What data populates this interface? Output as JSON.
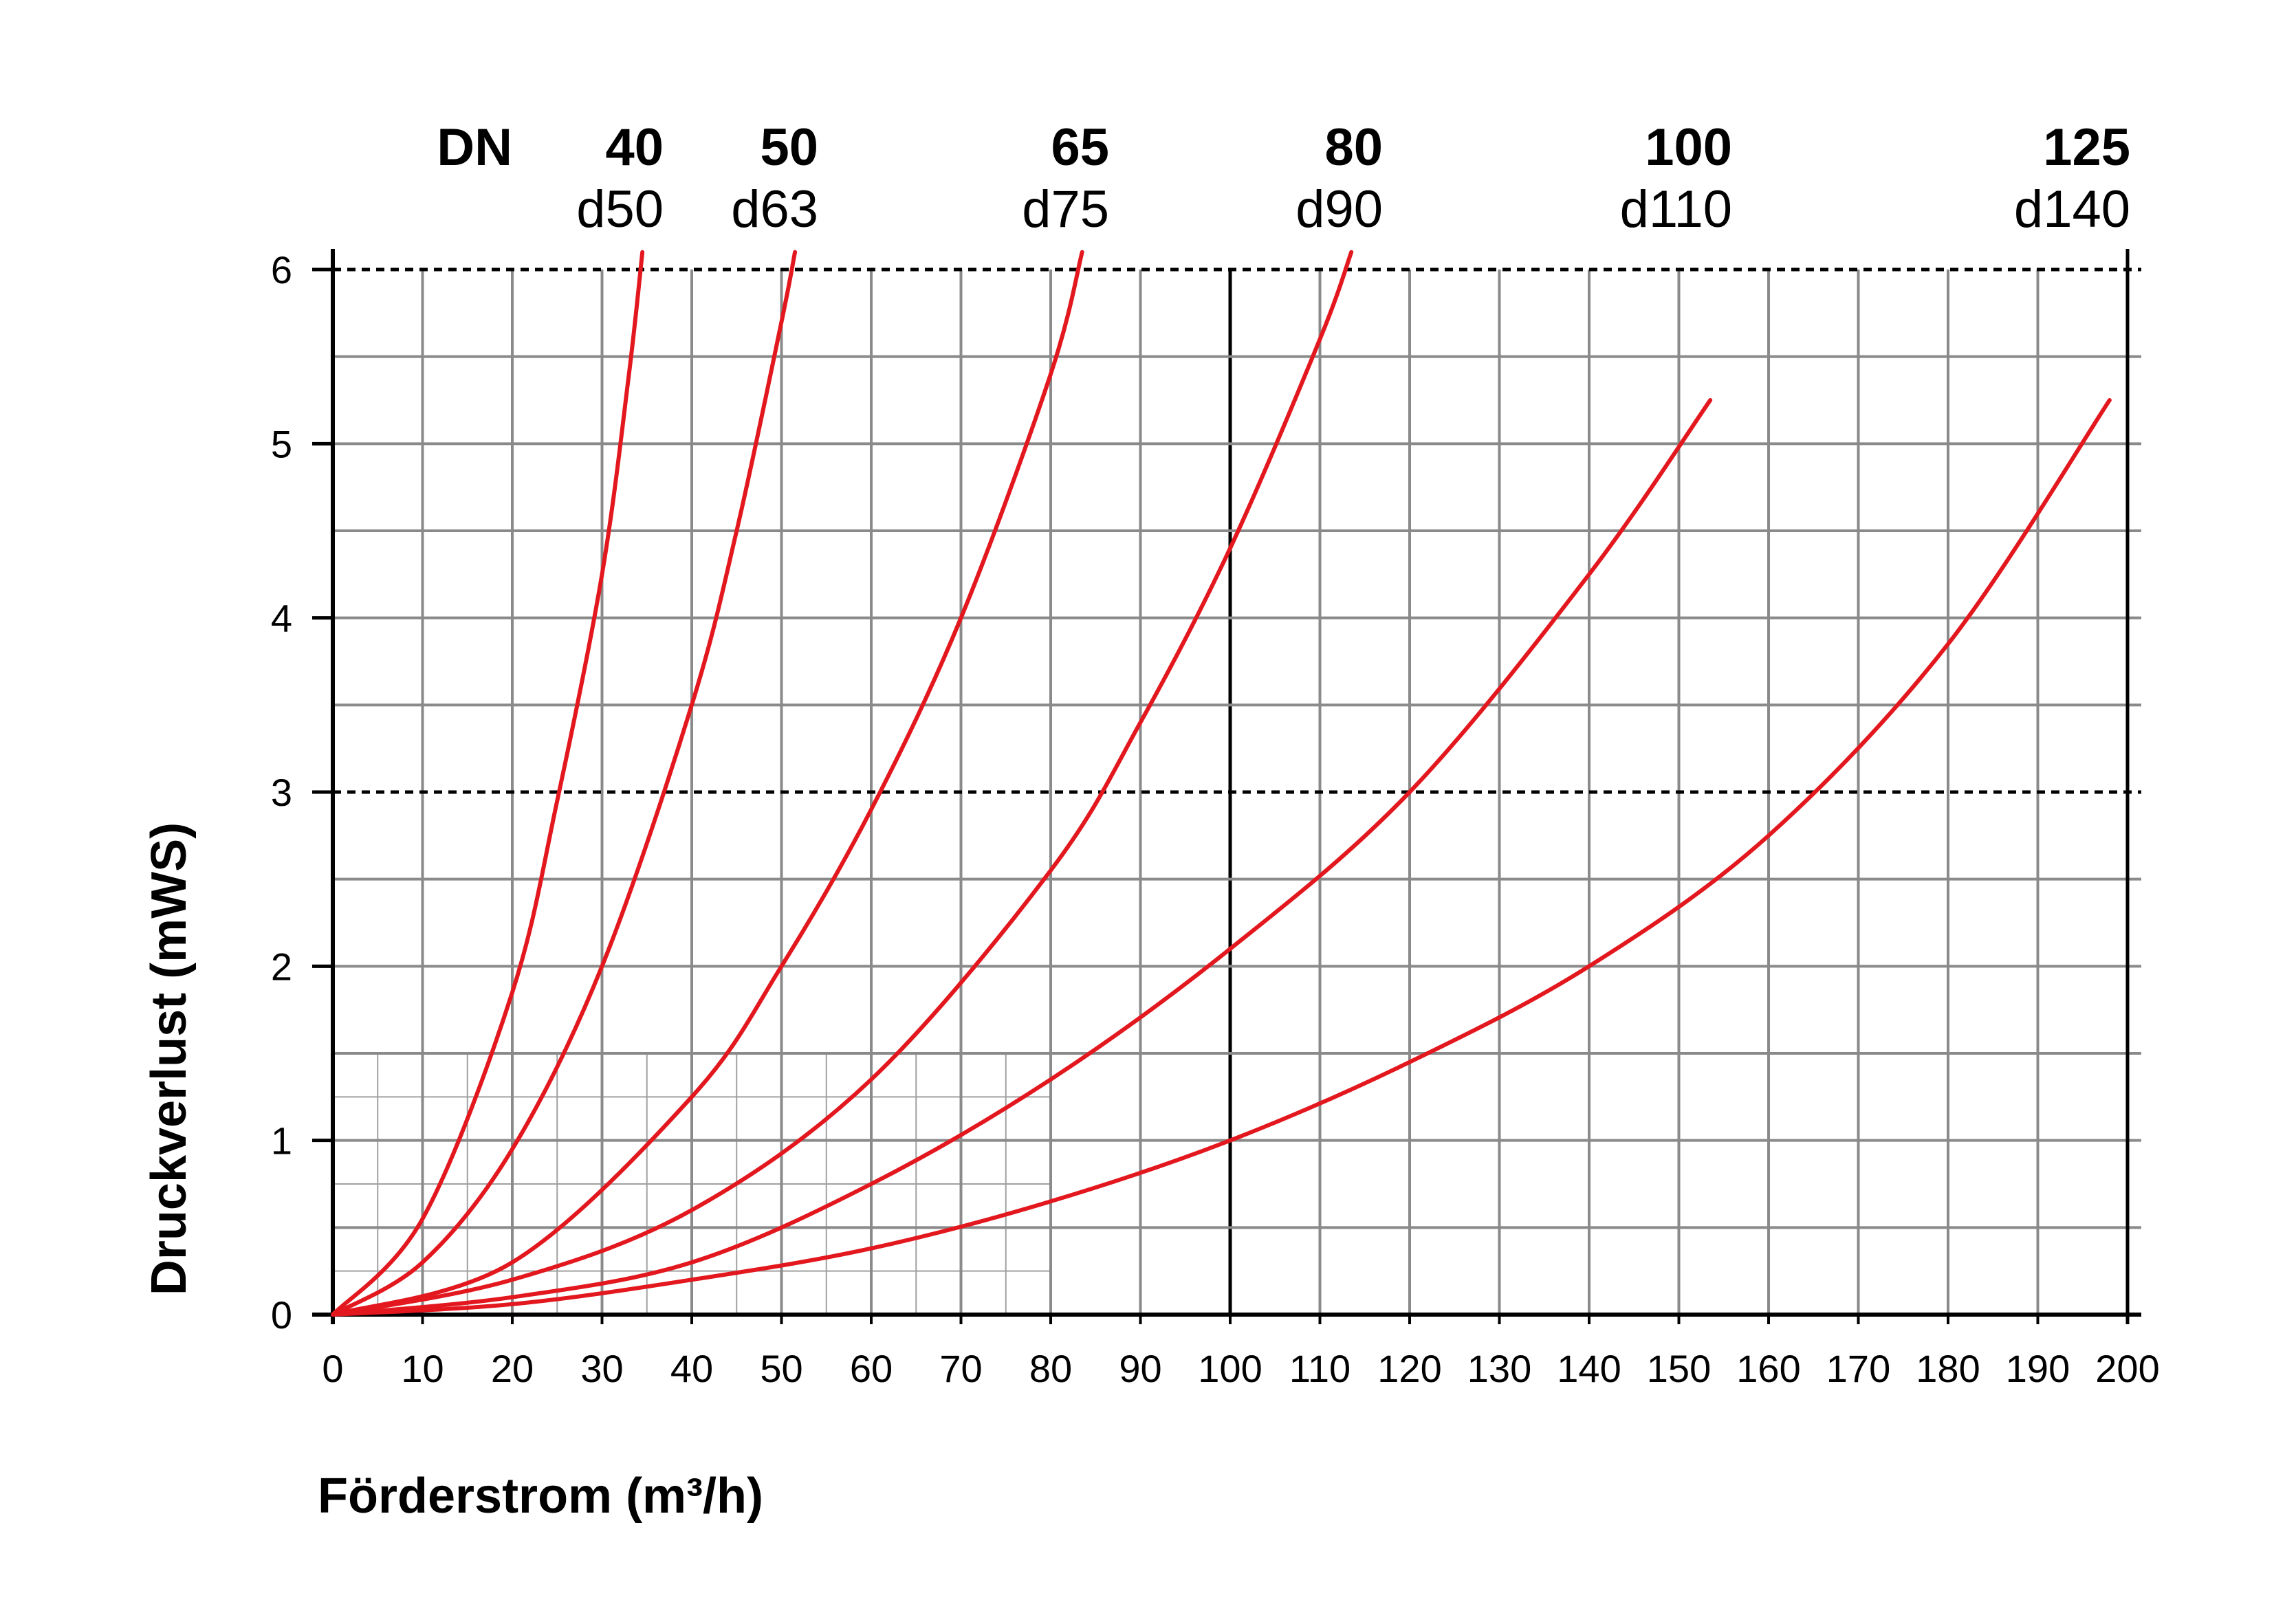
{
  "chart_data": {
    "type": "line",
    "xlabel": "Förderstrom (m³/h)",
    "ylabel": "Druckverlust (mWS)",
    "xlim": [
      0,
      200
    ],
    "ylim": [
      0,
      6
    ],
    "x_ticks": [
      "0",
      "10",
      "20",
      "30",
      "40",
      "50",
      "60",
      "70",
      "80",
      "90",
      "100",
      "110",
      "120",
      "130",
      "140",
      "150",
      "160",
      "170",
      "180",
      "190",
      "200"
    ],
    "y_ticks": [
      "0",
      "1",
      "2",
      "3",
      "4",
      "5",
      "6"
    ],
    "dn_header": "DN",
    "grid": true,
    "dashed_reference_lines": [
      3,
      6
    ],
    "colors": {
      "curve": "#e3171e",
      "grid": "#8a8a8a",
      "axis": "#000000"
    },
    "series": [
      {
        "dn": "40",
        "d": "d50",
        "x": [
          0,
          10,
          20,
          25,
          30,
          33,
          34.5
        ],
        "y": [
          0,
          0.55,
          1.85,
          2.95,
          4.25,
          5.4,
          6.1
        ]
      },
      {
        "dn": "50",
        "d": "d63",
        "x": [
          0,
          10,
          20,
          30,
          40,
          45,
          50,
          51.5
        ],
        "y": [
          0,
          0.3,
          0.95,
          2.0,
          3.5,
          4.5,
          5.7,
          6.1
        ]
      },
      {
        "dn": "65",
        "d": "d75",
        "x": [
          0,
          20,
          40,
          50,
          60,
          70,
          80,
          83.5
        ],
        "y": [
          0,
          0.3,
          1.25,
          2.0,
          2.9,
          4.0,
          5.4,
          6.1
        ]
      },
      {
        "dn": "80",
        "d": "d90",
        "x": [
          0,
          20,
          40,
          60,
          80,
          90,
          100,
          110,
          113.5
        ],
        "y": [
          0,
          0.2,
          0.6,
          1.35,
          2.55,
          3.4,
          4.4,
          5.6,
          6.1
        ]
      },
      {
        "dn": "100",
        "d": "d110",
        "x": [
          0,
          20,
          40,
          60,
          80,
          100,
          120,
          140,
          153.5
        ],
        "y": [
          0,
          0.1,
          0.3,
          0.75,
          1.35,
          2.1,
          3.0,
          4.25,
          5.25
        ]
      },
      {
        "dn": "125",
        "d": "d140",
        "x": [
          0,
          20,
          40,
          60,
          80,
          100,
          120,
          140,
          160,
          180,
          198
        ],
        "y": [
          0,
          0.06,
          0.2,
          0.38,
          0.65,
          1.0,
          1.45,
          2.0,
          2.75,
          3.85,
          5.25
        ]
      }
    ]
  }
}
